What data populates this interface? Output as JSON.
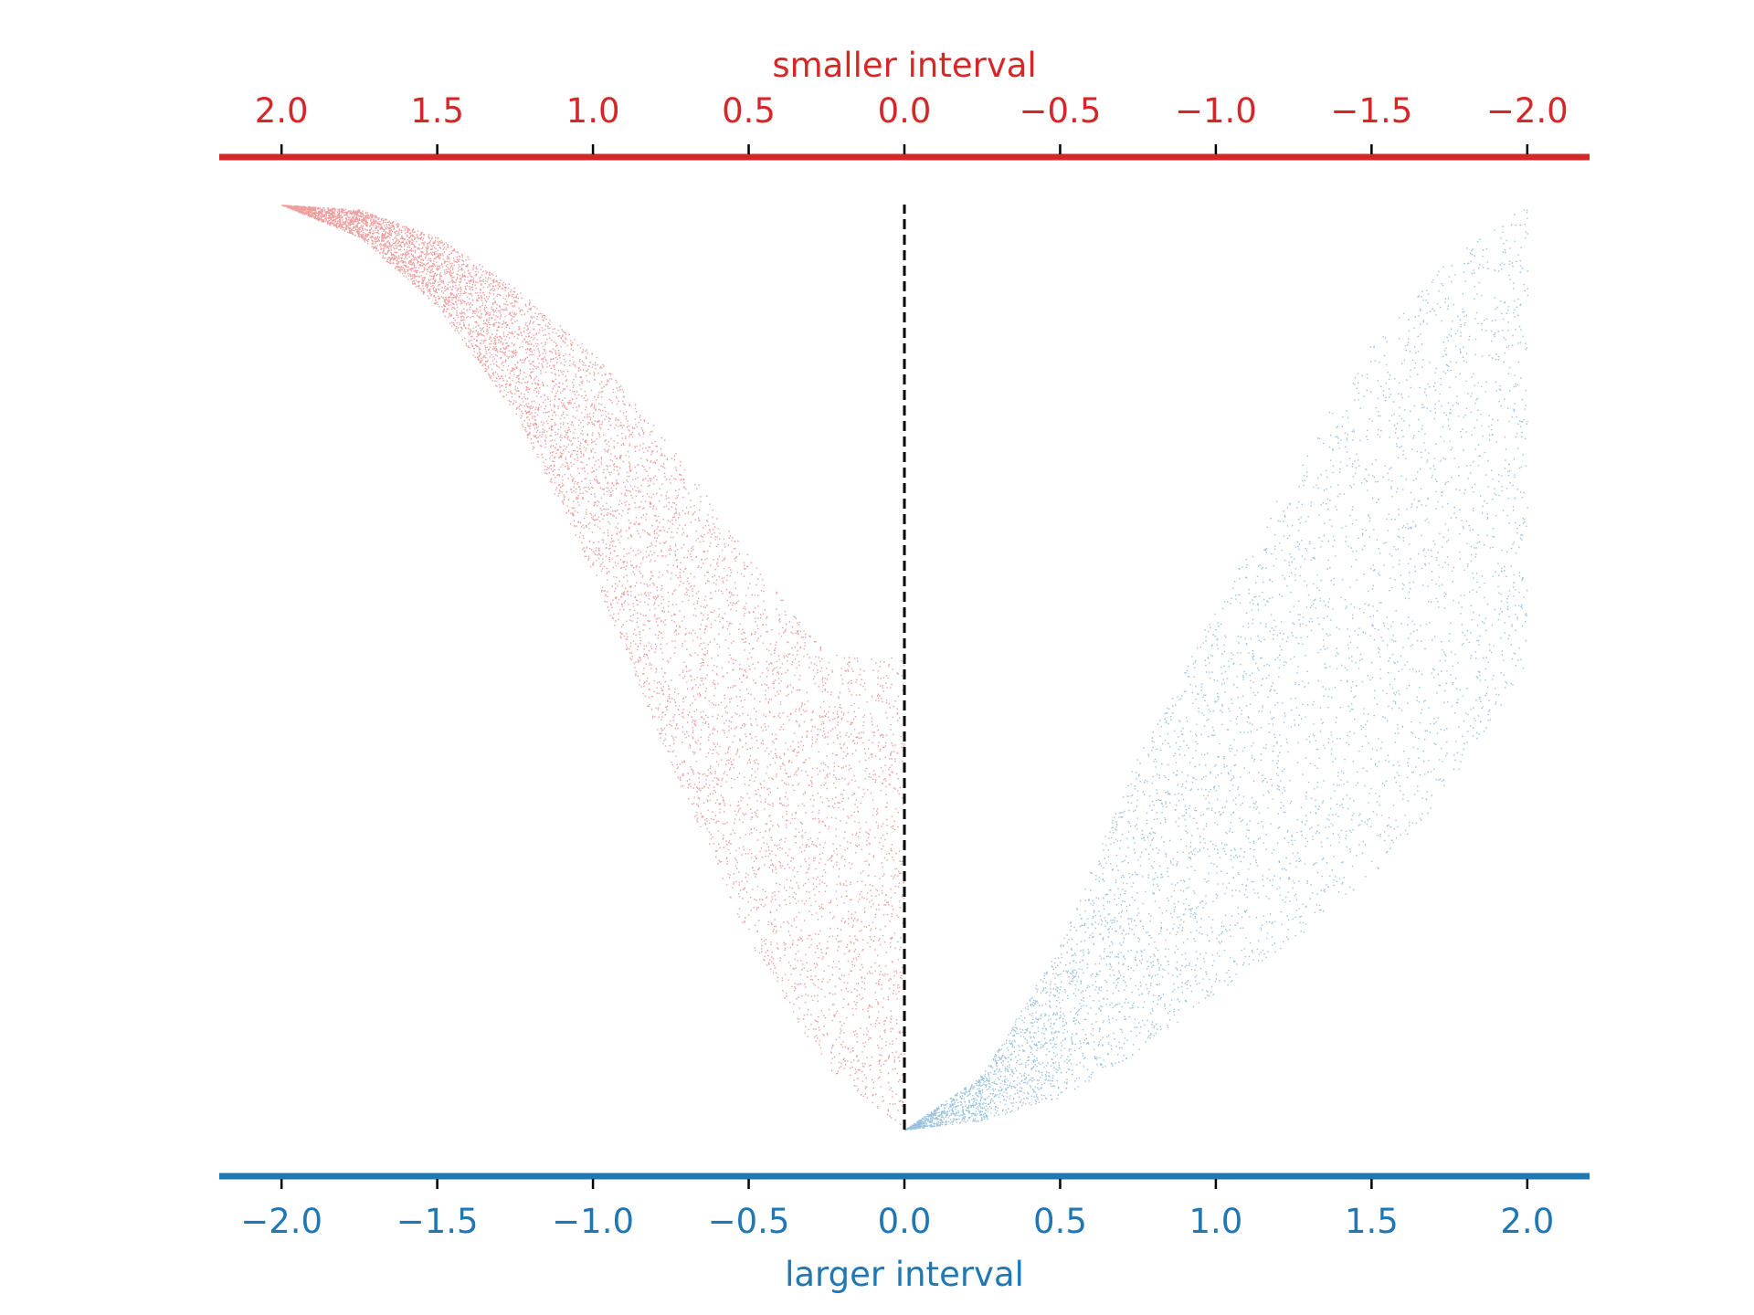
{
  "chart_data": {
    "type": "scatter",
    "title": "",
    "top_axis": {
      "label": "smaller interval",
      "color": "#d62728",
      "ticks": [
        2.0,
        1.5,
        1.0,
        0.5,
        0.0,
        -0.5,
        -1.0,
        -1.5,
        -2.0
      ],
      "tick_labels": [
        "2.0",
        "1.5",
        "1.0",
        "0.5",
        "0.0",
        "−0.5",
        "−1.0",
        "−1.5",
        "−2.0"
      ],
      "direction": "reversed",
      "xlim": [
        2.2,
        -2.2
      ]
    },
    "bottom_axis": {
      "label": "larger interval",
      "color": "#1f77b4",
      "ticks": [
        -2.0,
        -1.5,
        -1.0,
        -0.5,
        0.0,
        0.5,
        1.0,
        1.5,
        2.0
      ],
      "tick_labels": [
        "−2.0",
        "−1.5",
        "−1.0",
        "−0.5",
        "0.0",
        "0.5",
        "1.0",
        "1.5",
        "2.0"
      ],
      "xlim": [
        -2.2,
        2.2
      ]
    },
    "y_axis": {
      "visible": false,
      "ylim": [
        0,
        1
      ]
    },
    "grid": false,
    "series": [
      {
        "color": "#d62728",
        "x_range": [
          -2.0,
          0.0
        ],
        "envelope": {
          "x": [
            -2.0,
            -1.75,
            -1.5,
            -1.25,
            -1.0,
            -0.75,
            -0.5,
            -0.25,
            0.0
          ],
          "lower": [
            1.0,
            0.965,
            0.89,
            0.775,
            0.6,
            0.395,
            0.205,
            0.065,
            0.0
          ],
          "upper": [
            1.0,
            0.995,
            0.965,
            0.91,
            0.84,
            0.74,
            0.62,
            0.515,
            0.51
          ]
        }
      },
      {
        "color": "#1f77b4",
        "x_range": [
          0.0,
          2.0
        ],
        "envelope": {
          "x": [
            0.0,
            0.25,
            0.5,
            0.75,
            1.0,
            1.25,
            1.5,
            1.75,
            2.0
          ],
          "lower": [
            0.0,
            0.01,
            0.035,
            0.085,
            0.145,
            0.205,
            0.275,
            0.37,
            0.505
          ],
          "upper": [
            0.0,
            0.06,
            0.2,
            0.405,
            0.565,
            0.715,
            0.85,
            0.945,
            1.0
          ]
        }
      }
    ],
    "reference_line": {
      "x": 0.0,
      "style": "dashed",
      "color": "#000000",
      "y_range": [
        0.0,
        1.0
      ]
    }
  }
}
